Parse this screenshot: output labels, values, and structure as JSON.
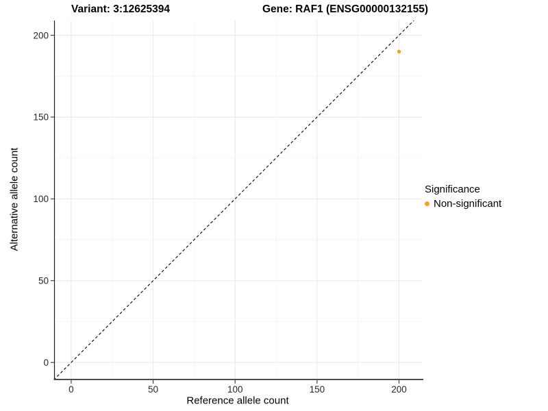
{
  "chart_data": {
    "type": "scatter",
    "titles": {
      "left": "Variant: 3:12625394",
      "right": "Gene: RAF1 (ENSG00000132155)"
    },
    "xlabel": "Reference allele count",
    "ylabel": "Alternative allele count",
    "xlim": [
      -10,
      214
    ],
    "ylim": [
      -10,
      209
    ],
    "x_ticks": [
      0,
      50,
      100,
      150,
      200
    ],
    "y_ticks": [
      0,
      50,
      100,
      150,
      200
    ],
    "x_minor_gridlines": [
      25,
      75,
      125,
      175
    ],
    "y_minor_gridlines": [
      25,
      75,
      125,
      175
    ],
    "grid": "on",
    "identity_line": {
      "style": "dashed",
      "equation": "y = x"
    },
    "series": [
      {
        "name": "Non-significant",
        "color": "#F9A02C",
        "points": [
          [
            200,
            190
          ]
        ]
      }
    ],
    "legend": {
      "position": "right",
      "title": "Significance",
      "items": [
        {
          "label": "Non-significant",
          "color": "#F9A02C",
          "marker": "circle"
        }
      ]
    }
  },
  "colors": {
    "background": "#FFFFFF",
    "grid_major": "#EAEAEA",
    "grid_minor": "#F5F5F5",
    "axis_line_left": "#1A1A1A",
    "axis_line_bottom": "#4D4D4D",
    "tick_mark": "#333333",
    "tick_label": "#262626",
    "identity_line": "#000000",
    "point": "#F9A02C"
  }
}
